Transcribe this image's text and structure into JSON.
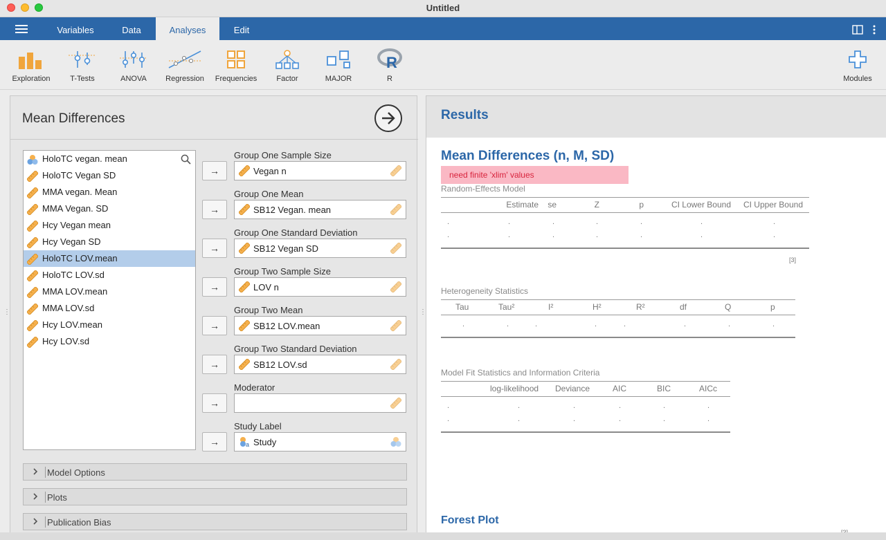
{
  "window": {
    "title": "Untitled"
  },
  "menubar": {
    "tabs": [
      {
        "label": "Variables"
      },
      {
        "label": "Data"
      },
      {
        "label": "Analyses"
      },
      {
        "label": "Edit"
      }
    ],
    "active_tab": "Analyses"
  },
  "ribbon": {
    "items": [
      {
        "label": "Exploration",
        "icon": "exploration-bars-icon"
      },
      {
        "label": "T-Tests",
        "icon": "t-tests-icon"
      },
      {
        "label": "ANOVA",
        "icon": "anova-icon"
      },
      {
        "label": "Regression",
        "icon": "regression-icon"
      },
      {
        "label": "Frequencies",
        "icon": "frequencies-icon"
      },
      {
        "label": "Factor",
        "icon": "factor-icon"
      },
      {
        "label": "MAJOR",
        "icon": "major-icon"
      },
      {
        "label": "R",
        "icon": "r-logo-icon"
      }
    ],
    "modules_label": "Modules"
  },
  "options_panel": {
    "title": "Mean Differences",
    "variables": [
      {
        "label": "HoloTC vegan. mean",
        "type": "nominal"
      },
      {
        "label": "HoloTC Vegan SD",
        "type": "continuous"
      },
      {
        "label": "MMA vegan. Mean",
        "type": "continuous"
      },
      {
        "label": "MMA Vegan. SD",
        "type": "continuous"
      },
      {
        "label": "Hcy Vegan mean",
        "type": "continuous"
      },
      {
        "label": "Hcy Vegan SD",
        "type": "continuous"
      },
      {
        "label": "HoloTC LOV.mean",
        "type": "continuous",
        "selected": true
      },
      {
        "label": "HoloTC LOV.sd",
        "type": "continuous"
      },
      {
        "label": "MMA LOV.mean",
        "type": "continuous"
      },
      {
        "label": "MMA LOV.sd",
        "type": "continuous"
      },
      {
        "label": "Hcy LOV.mean",
        "type": "continuous"
      },
      {
        "label": "Hcy LOV.sd",
        "type": "continuous"
      }
    ],
    "slots": [
      {
        "label": "Group One Sample Size",
        "value": "Vegan n",
        "type": "continuous"
      },
      {
        "label": "Group One Mean",
        "value": "SB12 Vegan. mean",
        "type": "continuous"
      },
      {
        "label": "Group One Standard Deviation",
        "value": "SB12 Vegan SD",
        "type": "continuous"
      },
      {
        "label": "Group Two Sample Size",
        "value": "LOV n",
        "type": "continuous"
      },
      {
        "label": "Group Two Mean",
        "value": "SB12 LOV.mean",
        "type": "continuous"
      },
      {
        "label": "Group Two Standard Deviation",
        "value": "SB12 LOV.sd",
        "type": "continuous"
      },
      {
        "label": "Moderator",
        "value": "",
        "type": "continuous"
      },
      {
        "label": "Study Label",
        "value": "Study",
        "type": "nominal"
      }
    ],
    "arrow_glyph": "→",
    "sections": [
      {
        "label": "Model Options"
      },
      {
        "label": "Plots"
      },
      {
        "label": "Publication Bias"
      }
    ]
  },
  "results": {
    "header": "Results",
    "analysis_title": "Mean Differences (n, M, SD)",
    "error": "need finite 'xlim' values",
    "random_effects": {
      "title": "Random-Effects Model",
      "columns": [
        "Estimate",
        "se",
        "Z",
        "p",
        "CI Lower Bound",
        "CI Upper Bound"
      ],
      "rows": [
        [
          ".",
          ".",
          ".",
          ".",
          ".",
          ".",
          "."
        ],
        [
          ".",
          ".",
          ".",
          ".",
          ".",
          ".",
          "."
        ]
      ],
      "footnote": "[3]"
    },
    "heterogeneity": {
      "title": "Heterogeneity Statistics",
      "columns": [
        "Tau",
        "Tau²",
        "I²",
        "H²",
        "R²",
        "df",
        "Q",
        "p"
      ],
      "row": [
        ".",
        ".",
        ".",
        ".",
        ".",
        ".",
        ".",
        "."
      ]
    },
    "model_fit": {
      "title": "Model Fit Statistics and Information Criteria",
      "columns": [
        "log-likelihood",
        "Deviance",
        "AIC",
        "BIC",
        "AICc"
      ],
      "rows": [
        [
          ".",
          ".",
          ".",
          ".",
          ".",
          "."
        ],
        [
          ".",
          ".",
          ".",
          ".",
          ".",
          "."
        ]
      ]
    },
    "forest_plot_title": "Forest Plot",
    "forest_plot_footnote": "[3]"
  },
  "colors": {
    "menubar": "#2c67a8",
    "accent_text": "#2c67a8",
    "selection": "#b3cdea",
    "error_bg": "#fab8c4",
    "error_text": "#d8243d",
    "ruler_orange": "#f0a53c"
  }
}
